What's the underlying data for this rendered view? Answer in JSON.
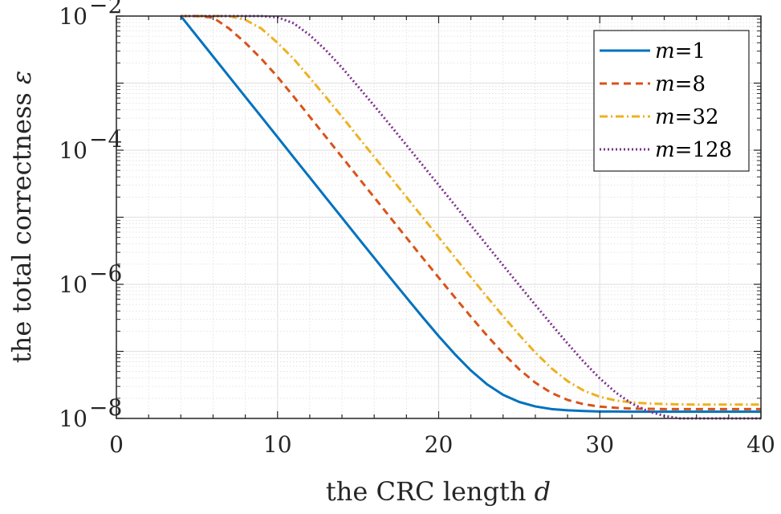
{
  "chart_data": {
    "type": "line",
    "xlabel": {
      "text": "the CRC length ",
      "var": "d"
    },
    "ylabel": {
      "text": "the total correctness ",
      "var": "ε"
    },
    "xlim": [
      0,
      40
    ],
    "ylim": [
      1e-08,
      0.01
    ],
    "yscale": "log",
    "grid": true,
    "legend_position": "top-right",
    "x_ticks": [
      "0",
      "10",
      "20",
      "30",
      "40"
    ],
    "y_ticks": [
      {
        "base": "10",
        "exp": "−2",
        "value": 0.01
      },
      {
        "base": "10",
        "exp": "−4",
        "value": 0.0001
      },
      {
        "base": "10",
        "exp": "−6",
        "value": 1e-06
      },
      {
        "base": "10",
        "exp": "−8",
        "value": 1e-08
      }
    ],
    "series": [
      {
        "name": "m=1",
        "var": "m",
        "num": "=1",
        "color": "#0072BD",
        "style": "solid",
        "m": 1
      },
      {
        "name": "m=8",
        "var": "m",
        "num": "=8",
        "color": "#D95319",
        "style": "dashed",
        "m": 8
      },
      {
        "name": "m=32",
        "var": "m",
        "num": "=32",
        "color": "#EDB120",
        "style": "dashdot",
        "m": 32
      },
      {
        "name": "m=128",
        "var": "m",
        "num": "=128",
        "color": "#7E2F8E",
        "style": "dotted",
        "m": 128
      }
    ],
    "x": [
      4,
      5,
      6,
      7,
      8,
      9,
      10,
      11,
      12,
      13,
      14,
      15,
      16,
      17,
      18,
      19,
      20,
      21,
      22,
      23,
      24,
      25,
      26,
      27,
      28,
      29,
      30,
      31,
      32,
      33,
      34,
      35,
      36,
      37,
      38,
      39,
      40
    ],
    "series_values": [
      [
        0.01,
        0.005,
        0.0025,
        0.00125,
        0.000625,
        0.000313,
        0.000157,
        7.82e-05,
        3.92e-05,
        1.96e-05,
        9.83e-06,
        4.93e-06,
        2.48e-06,
        1.25e-06,
        6.35e-07,
        3.25e-07,
        1.69e-07,
        9.1e-08,
        5.19e-08,
        3.23e-08,
        2.25e-08,
        1.76e-08,
        1.51e-08,
        1.38e-08,
        1.32e-08,
        1.29e-08,
        1.27e-08,
        1.27e-08,
        1.26e-08,
        1.26e-08,
        1.26e-08,
        1.26e-08,
        1.26e-08,
        1.26e-08,
        1.26e-08,
        1.26e-08,
        1.26e-08
      ],
      [
        0.01,
        0.01,
        0.0095,
        0.0065,
        0.004,
        0.0023,
        0.00124,
        0.00063,
        0.000316,
        0.000158,
        7.9e-05,
        3.95e-05,
        1.98e-05,
        9.9e-06,
        4.96e-06,
        2.49e-06,
        1.26e-06,
        6.4e-07,
        3.29e-07,
        1.72e-07,
        9.35e-08,
        5.4e-08,
        3.41e-08,
        2.4e-08,
        1.89e-08,
        1.63e-08,
        1.5e-08,
        1.44e-08,
        1.4e-08,
        1.39e-08,
        1.38e-08,
        1.38e-08,
        1.38e-08,
        1.38e-08,
        1.38e-08,
        1.38e-08,
        1.38e-08
      ],
      [
        0.01,
        0.01,
        0.01,
        0.01,
        0.0088,
        0.0065,
        0.004,
        0.0023,
        0.0012,
        0.00062,
        0.000315,
        0.000158,
        7.95e-05,
        3.99e-05,
        2e-05,
        1e-05,
        5.05e-06,
        2.54e-06,
        1.28e-06,
        6.5e-07,
        3.35e-07,
        1.76e-07,
        9.6e-08,
        5.6e-08,
        3.6e-08,
        2.6e-08,
        2.1e-08,
        1.85e-08,
        1.73e-08,
        1.67e-08,
        1.64e-08,
        1.62e-08,
        1.61e-08,
        1.61e-08,
        1.61e-08,
        1.61e-08,
        1.61e-08
      ],
      [
        0.01,
        0.01,
        0.01,
        0.01,
        0.01,
        0.01,
        0.0096,
        0.0078,
        0.0052,
        0.0031,
        0.0017,
        0.00089,
        0.00046,
        0.000235,
        0.000119,
        6e-05,
        3.02e-05,
        1.52e-05,
        7.6e-06,
        3.82e-06,
        1.92e-06,
        9.7e-07,
        4.92e-07,
        2.52e-07,
        1.31e-07,
        7e-08,
        3.95e-08,
        2.42e-08,
        1.66e-08,
        1.28e-08,
        1.09e-08,
        1e-08,
        1e-08,
        1e-08,
        1e-08,
        1e-08,
        1e-08
      ]
    ]
  }
}
